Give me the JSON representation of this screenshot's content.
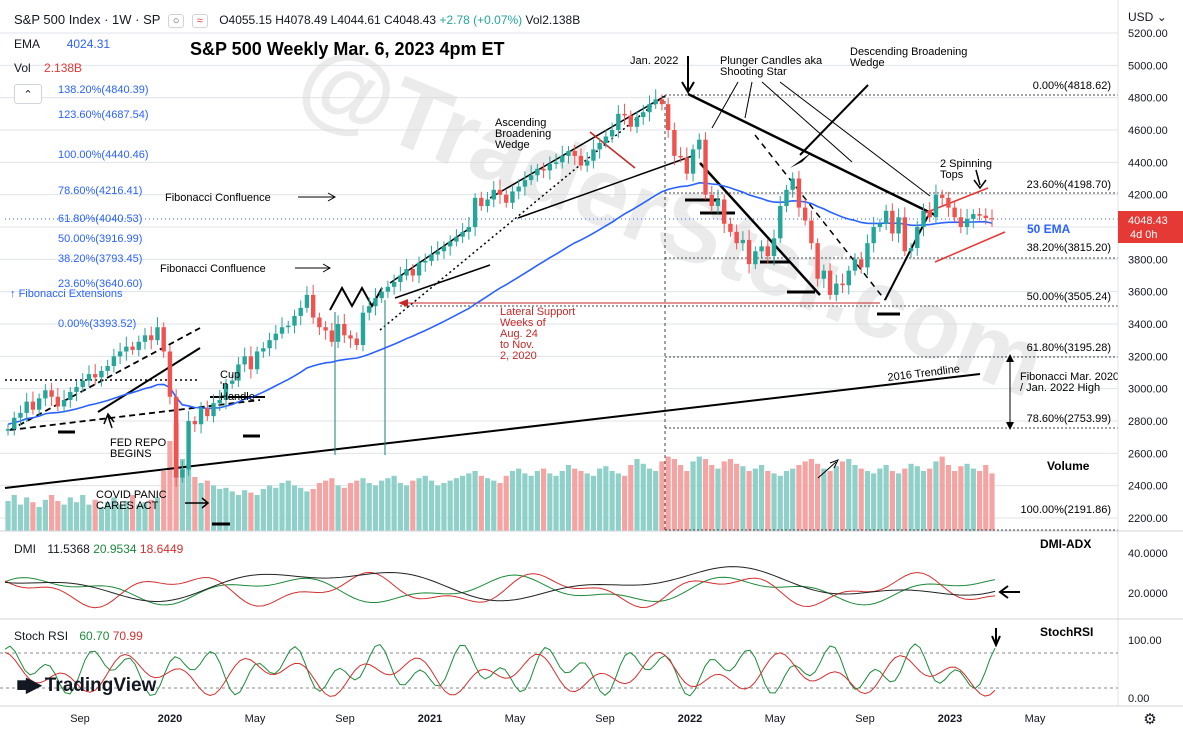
{
  "header": {
    "symbol": "S&P 500 Index · 1W · SP",
    "ohlc": {
      "o": "O4055.15",
      "h": "H4078.49",
      "l": "L4044.61",
      "c": "C4048.43",
      "chg": "+2.78 (+0.07%)",
      "vol": "Vol2.138B"
    },
    "ema_label": "EMA",
    "ema_value": "4024.31",
    "vol_label": "Vol",
    "vol_value": "2.138B",
    "currency": "USD",
    "collapse_icon": "chevron-up-icon"
  },
  "colors": {
    "up": "#26a69a",
    "down": "#ef5350",
    "ema": "#2962ff",
    "vol_up": "#8fd0c8",
    "vol_down": "#f4a5a3",
    "fib": "#2962ff",
    "grid": "#e0e3eb",
    "red_ann": "#c62828"
  },
  "fib_extensions": {
    "title": "Fibonacci Extensions",
    "levels": [
      "138.20%(4840.39)",
      "123.60%(4687.54)",
      "100.00%(4440.46)",
      "78.60%(4216.41)",
      "61.80%(4040.53)",
      "50.00%(3916.99)",
      "38.20%(3793.45)",
      "23.60%(3640.60)",
      "0.00%(3393.52)"
    ]
  },
  "fib_retracement": {
    "levels": [
      "0.00%(4818.62)",
      "23.60%(4198.70)",
      "38.20%(3815.20)",
      "50.00%(3505.24)",
      "61.80%(3195.28)",
      "78.60%(2753.99)",
      "100.00%(2191.86)"
    ]
  },
  "annotations": {
    "title": "S&P 500 Weekly Mar. 6, 2023 4pm ET",
    "jan2022": "Jan. 2022",
    "plunger": "Plunger Candles aka Shooting Star",
    "desc_wedge": "Descending Broadening Wedge",
    "asc_wedge": "Ascending Broadening Wedge",
    "fib_conf_1": "Fibonacci Confluence",
    "fib_conf_2": "Fibonacci Confluence",
    "spinning": "2 Spinning Tops",
    "ema50": "50 EMA",
    "lateral": "Lateral Support Weeks of Aug. 24 to Nov. 2, 2020",
    "trend2016": "2016 Trendline",
    "fib_note": "Fibonacci Mar. 2020 Low / Jan. 2022 High",
    "cup": "Cup 'n Handle",
    "fed": "FED REPO BEGINS",
    "covid": "COVID PANIC CARES ACT",
    "volume": "Volume",
    "dmi_adx": "DMI-ADX",
    "stochrsi": "StochRSI",
    "watermark": "@TraderStef.com",
    "logo": "TradingView"
  },
  "price_badge": {
    "value": "4048.43",
    "sub": "4d 0h"
  },
  "dmi": {
    "label": "DMI",
    "v1": "11.5368",
    "v2": "20.9534",
    "v3": "18.6449",
    "ticks": [
      "40.0000",
      "20.0000"
    ]
  },
  "stoch": {
    "label": "Stoch RSI",
    "k": "60.70",
    "d": "70.99",
    "ticks": [
      "100.00",
      "0.00"
    ]
  },
  "time_axis": [
    "Sep",
    "2020",
    "May",
    "Sep",
    "2021",
    "May",
    "Sep",
    "2022",
    "May",
    "Sep",
    "2023",
    "May"
  ],
  "chart_data": {
    "type": "candlestick",
    "title": "S&P 500 Weekly Mar. 6, 2023 4pm ET",
    "y_ticks": [
      5200,
      5000,
      4800,
      4600,
      4400,
      4200,
      4000,
      3800,
      3600,
      3400,
      3200,
      3000,
      2800,
      2600,
      2400,
      2200
    ],
    "ylim": [
      2120,
      5290
    ],
    "weekly_close_path": [
      2750,
      2820,
      2850,
      2920,
      2870,
      2940,
      2990,
      2950,
      2890,
      2930,
      2980,
      3010,
      3050,
      3090,
      3070,
      3110,
      3140,
      3200,
      3230,
      3260,
      3240,
      3290,
      3330,
      3300,
      3380,
      3230,
      2950,
      2450,
      2500,
      2800,
      2780,
      2880,
      2830,
      2910,
      2930,
      3030,
      3050,
      3150,
      3200,
      3120,
      3230,
      3250,
      3300,
      3340,
      3380,
      3390,
      3450,
      3500,
      3580,
      3440,
      3380,
      3360,
      3290,
      3400,
      3330,
      3310,
      3270,
      3470,
      3510,
      3560,
      3600,
      3630,
      3660,
      3700,
      3740,
      3700,
      3780,
      3790,
      3830,
      3850,
      3880,
      3910,
      3940,
      3970,
      4000,
      4180,
      4130,
      4170,
      4230,
      4200,
      4150,
      4220,
      4250,
      4290,
      4320,
      4360,
      4350,
      4390,
      4400,
      4440,
      4470,
      4440,
      4380,
      4410,
      4480,
      4520,
      4560,
      4600,
      4700,
      4690,
      4620,
      4680,
      4710,
      4760,
      4790,
      4760,
      4600,
      4440,
      4430,
      4330,
      4480,
      4540,
      4200,
      4130,
      4170,
      4020,
      3970,
      3900,
      3920,
      3770,
      3850,
      3880,
      3820,
      3930,
      4130,
      4230,
      4300,
      4120,
      4040,
      3900,
      3680,
      3730,
      3580,
      3650,
      3640,
      3730,
      3800,
      3750,
      3900,
      4000,
      4020,
      4100,
      3960,
      4060,
      3850,
      3870,
      4000,
      4100,
      4060,
      4200,
      4180,
      4120,
      4060,
      4000,
      4050,
      4080,
      4070,
      4055,
      4048
    ],
    "ema_path": [
      2780,
      2790,
      2800,
      2815,
      2820,
      2830,
      2845,
      2850,
      2852,
      2858,
      2866,
      2875,
      2886,
      2898,
      2906,
      2916,
      2927,
      2940,
      2953,
      2966,
      2976,
      2988,
      3001,
      3010,
      3025,
      3026,
      3007,
      2947,
      2900,
      2893,
      2883,
      2882,
      2877,
      2880,
      2882,
      2892,
      2902,
      2918,
      2936,
      2944,
      2962,
      2979,
      2998,
      3018,
      3038,
      3057,
      3079,
      3102,
      3128,
      3141,
      3151,
      3160,
      3164,
      3174,
      3180,
      3185,
      3189,
      3200,
      3213,
      3228,
      3243,
      3259,
      3275,
      3292,
      3310,
      3325,
      3343,
      3360,
      3378,
      3397,
      3416,
      3436,
      3456,
      3476,
      3496,
      3523,
      3547,
      3572,
      3598,
      3622,
      3643,
      3667,
      3690,
      3714,
      3738,
      3763,
      3786,
      3810,
      3832,
      3856,
      3880,
      3902,
      3920,
      3940,
      3962,
      3984,
      4007,
      4030,
      4056,
      4081,
      4102,
      4125,
      4148,
      4172,
      4196,
      4218,
      4233,
      4242,
      4250,
      4253,
      4262,
      4273,
      4271,
      4266,
      4263,
      4253,
      4242,
      4228,
      4216,
      4198,
      4187,
      4176,
      4162,
      4154,
      4153,
      4156,
      4162,
      4160,
      4155,
      4145,
      4127,
      4112,
      4093,
      4077,
      4061,
      4049,
      4040,
      4028,
      4023,
      4022,
      4022,
      4025,
      4022,
      4024,
      4017,
      4011,
      4010,
      4013,
      4015,
      4021,
      4026,
      4029,
      4030,
      4029,
      4030,
      4031,
      4032,
      4032,
      4024
    ],
    "volume_units": "relative 0-1",
    "volume": [
      0.25,
      0.3,
      0.22,
      0.28,
      0.24,
      0.2,
      0.26,
      0.3,
      0.25,
      0.22,
      0.28,
      0.24,
      0.3,
      0.22,
      0.26,
      0.2,
      0.24,
      0.28,
      0.22,
      0.25,
      0.3,
      0.22,
      0.24,
      0.26,
      0.28,
      0.5,
      0.75,
      0.9,
      0.6,
      0.55,
      0.45,
      0.4,
      0.42,
      0.38,
      0.35,
      0.36,
      0.33,
      0.3,
      0.34,
      0.32,
      0.3,
      0.35,
      0.38,
      0.36,
      0.4,
      0.42,
      0.38,
      0.36,
      0.33,
      0.35,
      0.4,
      0.42,
      0.44,
      0.38,
      0.36,
      0.4,
      0.42,
      0.44,
      0.4,
      0.38,
      0.42,
      0.44,
      0.46,
      0.4,
      0.38,
      0.42,
      0.44,
      0.46,
      0.42,
      0.38,
      0.4,
      0.42,
      0.44,
      0.46,
      0.48,
      0.5,
      0.46,
      0.44,
      0.42,
      0.4,
      0.46,
      0.5,
      0.52,
      0.48,
      0.46,
      0.5,
      0.52,
      0.48,
      0.46,
      0.5,
      0.55,
      0.52,
      0.5,
      0.48,
      0.46,
      0.52,
      0.54,
      0.5,
      0.48,
      0.46,
      0.55,
      0.6,
      0.56,
      0.52,
      0.5,
      0.58,
      0.62,
      0.6,
      0.55,
      0.5,
      0.58,
      0.62,
      0.6,
      0.55,
      0.52,
      0.58,
      0.6,
      0.56,
      0.54,
      0.5,
      0.52,
      0.55,
      0.5,
      0.48,
      0.46,
      0.5,
      0.52,
      0.55,
      0.58,
      0.6,
      0.56,
      0.52,
      0.5,
      0.54,
      0.58,
      0.6,
      0.55,
      0.52,
      0.5,
      0.48,
      0.52,
      0.55,
      0.5,
      0.48,
      0.52,
      0.56,
      0.54,
      0.5,
      0.52,
      0.58,
      0.62,
      0.55,
      0.5,
      0.54,
      0.56,
      0.52,
      0.5,
      0.55,
      0.48
    ]
  }
}
